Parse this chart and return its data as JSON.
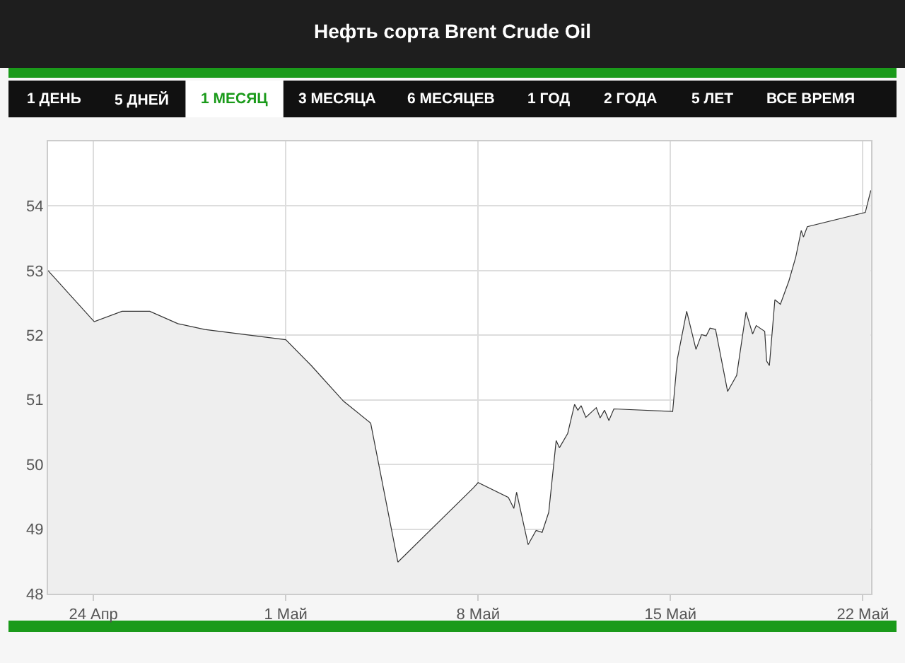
{
  "chart_data": {
    "type": "area",
    "title": "Нефть сорта Brent Crude Oil",
    "annotations": [
      "1 ДЕНЬ",
      "5 ДНЕЙ",
      "1 МЕСЯЦ",
      "3 МЕСЯЦА",
      "6 МЕСЯЦЕВ",
      "1 ГОД",
      "2 ГОДА",
      "5 ЛЕТ",
      "ВСЕ ВРЕМЯ"
    ],
    "x": [
      "--04-22T08:24",
      "--04-24T00:43",
      "--04-25T00:58",
      "--04-26T01:12",
      "--04-27T01:41",
      "--04-28T01:12",
      "--05-01T00:00",
      "--05-01T22:19",
      "--05-03T02:24",
      "--05-04T02:10",
      "--05-05T01:55",
      "--05-07T19:55",
      "--05-08T00:00",
      "--05-09T02:24",
      "--05-09T07:12",
      "--05-09T09:36",
      "--05-09T19:41",
      "--05-10T02:38",
      "--05-10T07:55",
      "--05-10T13:41",
      "--05-10T20:10",
      "--05-10T23:02",
      "--05-11T06:14",
      "--05-11T12:14",
      "--05-11T15:07",
      "--05-11T18:00",
      "--05-11T22:05",
      "--05-12T07:12",
      "--05-12T10:34",
      "--05-12T14:24",
      "--05-12T18:14",
      "--05-12T22:34",
      "--05-15T01:55",
      "--05-15T06:00",
      "--05-15T14:10",
      "--05-15T22:19",
      "--05-16T03:07",
      "--05-16T07:12",
      "--05-16T10:34",
      "--05-16T15:22",
      "--05-17T01:55",
      "--05-17T09:50",
      "--05-17T18:00",
      "--05-17T23:46",
      "--05-18T02:53",
      "--05-18T10:19",
      "--05-18T12:00",
      "--05-18T14:24",
      "--05-18T19:12",
      "--05-19T00:00",
      "--05-19T07:26",
      "--05-19T13:26",
      "--05-19T18:14",
      "--05-19T20:10",
      "--05-19T23:31",
      "--05-22T02:10",
      "--05-22T06:58"
    ],
    "series": [
      {
        "color": "#333333",
        "values": [
          53.0,
          52.21,
          52.37,
          52.37,
          52.18,
          52.09,
          51.93,
          51.53,
          50.98,
          50.64,
          48.49,
          49.64,
          49.72,
          49.49,
          49.32,
          49.57,
          48.76,
          48.98,
          48.95,
          49.26,
          50.37,
          50.26,
          50.48,
          50.93,
          50.84,
          50.91,
          50.73,
          50.88,
          50.72,
          50.84,
          50.68,
          50.86,
          50.82,
          51.63,
          52.37,
          51.78,
          52.01,
          51.99,
          52.11,
          52.09,
          51.13,
          51.38,
          52.36,
          52.02,
          52.15,
          52.06,
          51.6,
          51.53,
          52.55,
          52.48,
          52.84,
          53.21,
          53.62,
          53.52,
          53.68,
          53.9,
          54.24
        ]
      }
    ],
    "xlim": [
      "--04-22T08:24",
      "--05-22T07:12"
    ],
    "xticks": [
      {
        "value": "--04-24",
        "label": "24 Апр"
      },
      {
        "value": "--05-01",
        "label": "1 Май"
      },
      {
        "value": "--05-08",
        "label": "8 Май"
      },
      {
        "value": "--05-15",
        "label": "15 Май"
      },
      {
        "value": "--05-22",
        "label": "22 Май"
      }
    ],
    "ylim": [
      48,
      55
    ],
    "yticks": [
      48,
      49,
      50,
      51,
      52,
      53,
      54
    ],
    "grid": true
  }
}
